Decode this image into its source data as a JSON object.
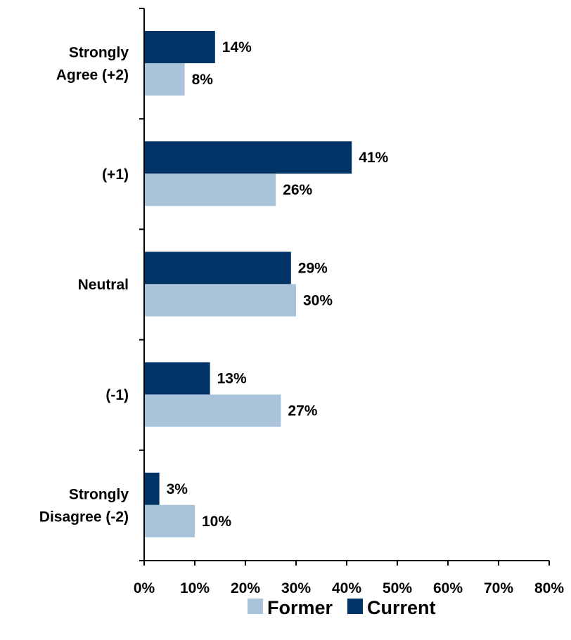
{
  "chart_data": {
    "type": "bar",
    "orientation": "horizontal",
    "categories": [
      [
        "Strongly",
        "Agree (+2)"
      ],
      [
        "(+1)"
      ],
      [
        "Neutral"
      ],
      [
        "(-1)"
      ],
      [
        "Strongly",
        "Disagree (-2)"
      ]
    ],
    "series": [
      {
        "name": "Current",
        "color": "#003366",
        "values": [
          14,
          41,
          29,
          13,
          3
        ],
        "labels": [
          "14%",
          "41%",
          "29%",
          "13%",
          "3%"
        ]
      },
      {
        "name": "Former",
        "color": "#A9C4DA",
        "values": [
          8,
          26,
          30,
          27,
          10
        ],
        "labels": [
          "8%",
          "26%",
          "30%",
          "27%",
          "10%"
        ]
      }
    ],
    "xlim": [
      0,
      80
    ],
    "xticks": [
      0,
      10,
      20,
      30,
      40,
      50,
      60,
      70,
      80
    ],
    "xtick_labels": [
      "0%",
      "10%",
      "20%",
      "30%",
      "40%",
      "50%",
      "60%",
      "70%",
      "80%"
    ],
    "grid": false,
    "legend": {
      "position": "bottom",
      "order": [
        "Former",
        "Current"
      ]
    },
    "title": "",
    "xlabel": "",
    "ylabel": ""
  }
}
